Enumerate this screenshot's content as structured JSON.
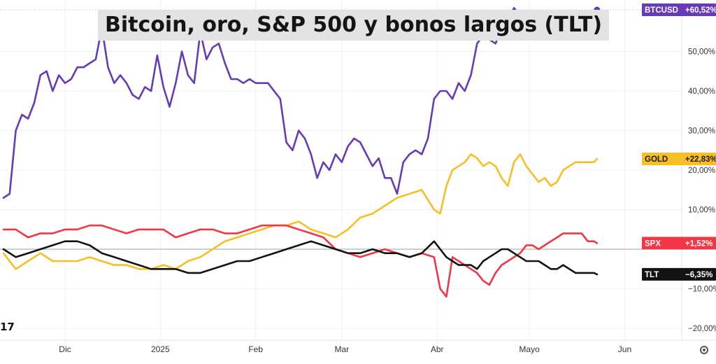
{
  "title": "Bitcoin, oro, S&P 500 y bonos largos (TLT)",
  "watermark": "17",
  "chart_data": {
    "type": "line",
    "title": "Bitcoin, oro, S&P 500 y bonos largos (TLT)",
    "xlabel": "",
    "ylabel": "",
    "ylim": [
      -23,
      63
    ],
    "y_ticks": [
      -20,
      -10,
      10,
      20,
      30,
      40,
      50
    ],
    "y_tick_labels": [
      "−20,00%",
      "−10,00%",
      "10,00%",
      "20,00%",
      "30,00%",
      "40,00%",
      "50,00%"
    ],
    "x_range": [
      0,
      204
    ],
    "x_ticks": [
      {
        "label": "Dic",
        "day": 20
      },
      {
        "label": "2025",
        "day": 51
      },
      {
        "label": "Feb",
        "day": 82
      },
      {
        "label": "Mar",
        "day": 110
      },
      {
        "label": "Abr",
        "day": 141
      },
      {
        "label": "Mayo",
        "day": 171
      },
      {
        "label": "Jun",
        "day": 202
      }
    ],
    "grid": true,
    "legend": "right",
    "series": [
      {
        "name": "BTCUSD",
        "label": "BTCUSD",
        "value_label": "+60,52%",
        "color": "#673ab7",
        "x": [
          0,
          2,
          4,
          6,
          8,
          10,
          12,
          14,
          16,
          18,
          20,
          22,
          24,
          26,
          28,
          30,
          32,
          34,
          36,
          38,
          40,
          42,
          44,
          46,
          48,
          50,
          52,
          54,
          56,
          58,
          60,
          62,
          64,
          66,
          68,
          70,
          72,
          74,
          76,
          78,
          80,
          82,
          84,
          86,
          88,
          90,
          92,
          94,
          96,
          98,
          100,
          102,
          104,
          106,
          108,
          110,
          112,
          114,
          116,
          118,
          120,
          122,
          124,
          126,
          128,
          130,
          132,
          134,
          136,
          138,
          140,
          142,
          144,
          146,
          148,
          150,
          152,
          154,
          156,
          158,
          160,
          162,
          164,
          166,
          168,
          170,
          172,
          174,
          176,
          178,
          180,
          182,
          184,
          186,
          188,
          190,
          192,
          193
        ],
        "y": [
          13,
          14,
          30,
          34,
          33,
          37,
          44,
          45,
          40,
          44,
          42,
          43,
          46,
          46,
          47,
          48,
          56,
          46,
          42,
          44,
          42,
          39,
          38,
          41,
          40,
          49,
          41,
          36,
          42,
          50,
          44,
          42,
          55,
          48,
          51,
          52,
          47,
          43,
          43,
          42,
          43,
          42,
          42,
          42,
          40,
          38,
          27,
          25,
          30,
          28,
          24,
          18,
          22,
          20,
          24,
          22,
          26,
          28,
          27,
          24,
          21,
          23,
          18,
          18,
          14,
          22,
          24,
          25,
          24,
          28,
          38,
          40,
          40,
          38,
          42,
          40,
          44,
          52,
          54,
          53,
          52,
          56,
          58,
          61,
          59,
          60,
          60,
          60,
          60,
          60,
          60,
          60,
          60,
          60,
          60,
          60,
          60,
          60.52
        ]
      },
      {
        "name": "GOLD",
        "label": "GOLD",
        "value_label": "+22,83%",
        "color": "#f7bf23",
        "x": [
          0,
          4,
          8,
          12,
          16,
          20,
          24,
          28,
          32,
          36,
          40,
          44,
          48,
          52,
          56,
          60,
          64,
          68,
          72,
          76,
          80,
          84,
          88,
          92,
          96,
          100,
          104,
          108,
          112,
          116,
          120,
          124,
          128,
          132,
          136,
          140,
          142,
          144,
          146,
          148,
          150,
          152,
          154,
          156,
          158,
          160,
          162,
          164,
          166,
          168,
          170,
          172,
          174,
          176,
          178,
          180,
          182,
          184,
          186,
          188,
          190,
          192,
          193
        ],
        "y": [
          -1,
          -5,
          -3,
          -1,
          -3,
          -3,
          -3,
          -2,
          -3,
          -4,
          -4,
          -5,
          -5,
          -4,
          -5,
          -3,
          -2,
          0,
          2,
          3,
          4,
          5,
          6,
          6,
          7,
          5,
          4,
          3,
          5,
          8,
          9,
          11,
          13,
          14,
          15,
          10,
          9,
          16,
          20,
          21,
          22,
          24,
          23,
          21,
          22,
          21,
          18,
          16,
          22,
          24,
          21,
          19,
          17,
          18,
          16,
          17,
          20,
          21,
          22,
          22,
          22,
          22,
          22.83
        ]
      },
      {
        "name": "SPX",
        "label": "SPX",
        "value_label": "+1,52%",
        "color": "#f23645",
        "x": [
          0,
          4,
          8,
          12,
          16,
          20,
          24,
          28,
          32,
          36,
          40,
          44,
          48,
          52,
          56,
          60,
          64,
          68,
          72,
          76,
          80,
          84,
          88,
          92,
          96,
          100,
          104,
          108,
          112,
          116,
          120,
          124,
          128,
          132,
          136,
          140,
          142,
          144,
          146,
          148,
          150,
          152,
          154,
          156,
          158,
          160,
          162,
          164,
          166,
          168,
          170,
          172,
          174,
          176,
          178,
          180,
          182,
          184,
          186,
          188,
          190,
          192,
          193
        ],
        "y": [
          5,
          5,
          3,
          4,
          4,
          5,
          5,
          6,
          6,
          5,
          4,
          5,
          5,
          5,
          3,
          4,
          5,
          5,
          4,
          4,
          5,
          6,
          6,
          6,
          5,
          4,
          3,
          0,
          -1,
          -2,
          -1,
          0,
          -1,
          -2,
          -1,
          -2,
          -10,
          -12,
          -2,
          -3,
          -4,
          -5,
          -6,
          -8,
          -9,
          -6,
          -4,
          -3,
          -2,
          -1,
          1,
          1,
          0,
          1,
          2,
          3,
          4,
          4,
          4,
          4,
          2,
          2,
          1.52
        ]
      },
      {
        "name": "TLT",
        "label": "TLT",
        "value_label": "−6,35%",
        "color": "#131313",
        "x": [
          0,
          4,
          8,
          12,
          16,
          20,
          24,
          28,
          32,
          36,
          40,
          44,
          48,
          52,
          56,
          60,
          64,
          68,
          72,
          76,
          80,
          84,
          88,
          92,
          96,
          100,
          104,
          108,
          112,
          116,
          120,
          124,
          128,
          132,
          136,
          140,
          142,
          144,
          146,
          148,
          150,
          152,
          154,
          156,
          158,
          160,
          162,
          164,
          166,
          168,
          170,
          172,
          174,
          176,
          178,
          180,
          182,
          184,
          186,
          188,
          190,
          192,
          193
        ],
        "y": [
          0,
          -2,
          -1,
          0,
          1,
          2,
          2,
          1,
          -1,
          -2,
          -3,
          -4,
          -5,
          -5,
          -5,
          -6,
          -6,
          -5,
          -4,
          -3,
          -3,
          -2,
          -1,
          0,
          1,
          2,
          1,
          0,
          -1,
          -1,
          0,
          -1,
          -1,
          -2,
          -1,
          2,
          0,
          -2,
          -3,
          -4,
          -4,
          -4,
          -5,
          -3,
          -2,
          -1,
          0,
          0,
          -1,
          -2,
          -3,
          -3,
          -3,
          -4,
          -5,
          -5,
          -4,
          -5,
          -6,
          -6,
          -6,
          -6,
          -6.35
        ]
      }
    ]
  },
  "colors": {
    "background": "#ffffff",
    "grid": "#eef0f3",
    "zero_line": "#9aa3ad"
  },
  "icons": [
    "settings-icon"
  ]
}
